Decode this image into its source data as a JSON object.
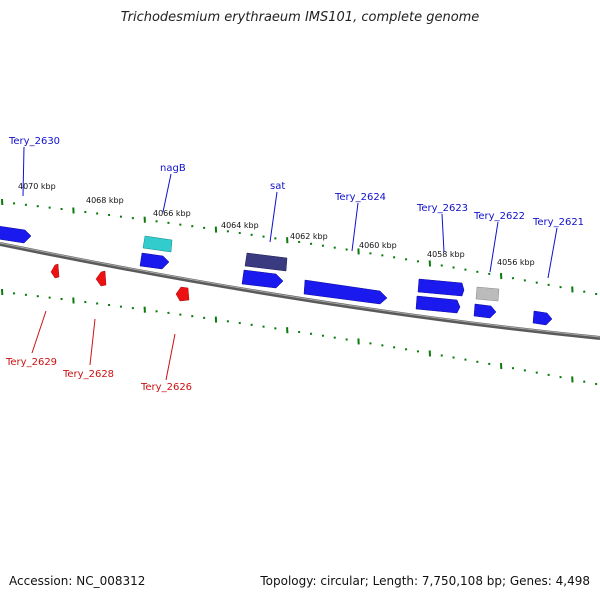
{
  "title": "Trichodesmium erythraeum IMS101, complete genome",
  "footer": {
    "accession": "Accession: NC_008312",
    "stats": "Topology: circular; Length: 7,750,108 bp; Genes: 4,498"
  },
  "colors": {
    "forward_gene": "#1a1aee",
    "reverse_gene": "#ee1111",
    "label_forward": "#1010cc",
    "label_reverse": "#cc1111",
    "highlight_nagB": "#33cccc",
    "highlight_sat": "#3a3a80",
    "pseudo_gene": "#bbbbbb",
    "ruler_ticks": "#0a7a0a",
    "backbone": "#888888"
  },
  "scale_labels": [
    "4070 kbp",
    "4068 kbp",
    "4066 kbp",
    "4064 kbp",
    "4062 kbp",
    "4060 kbp",
    "4058 kbp",
    "4056 kbp"
  ],
  "genes_forward": [
    {
      "label": "Tery_2630"
    },
    {
      "label": "nagB"
    },
    {
      "label": "sat"
    },
    {
      "label": "Tery_2624"
    },
    {
      "label": "Tery_2623"
    },
    {
      "label": "Tery_2622"
    },
    {
      "label": "Tery_2621"
    }
  ],
  "genes_reverse": [
    {
      "label": "Tery_2629"
    },
    {
      "label": "Tery_2628"
    },
    {
      "label": "Tery_2626"
    }
  ]
}
